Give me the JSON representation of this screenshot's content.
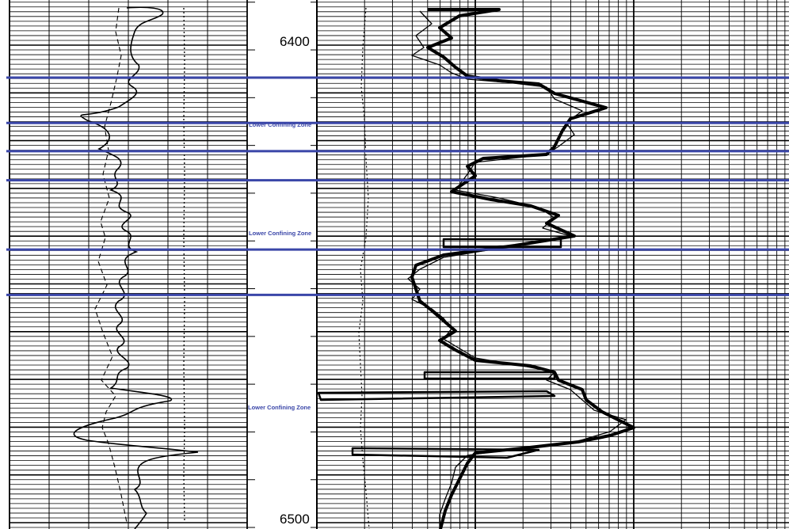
{
  "well_log": {
    "depth_labels": [
      {
        "text": "6400",
        "depth": 6400
      },
      {
        "text": "6500",
        "depth": 6500
      }
    ],
    "zone_boundary_color": "#3a46a8",
    "confining_zones": [
      {
        "label": "Lower Confining Zone",
        "top_depth": 6406.8,
        "base_depth": 6416.3
      },
      {
        "label": "Lower Confining Zone",
        "top_depth": 6422.2,
        "base_depth": 6428.3
      },
      {
        "label": "Lower Confining Zone",
        "top_depth": 6442.8,
        "base_depth": 6452.3
      }
    ]
  }
}
